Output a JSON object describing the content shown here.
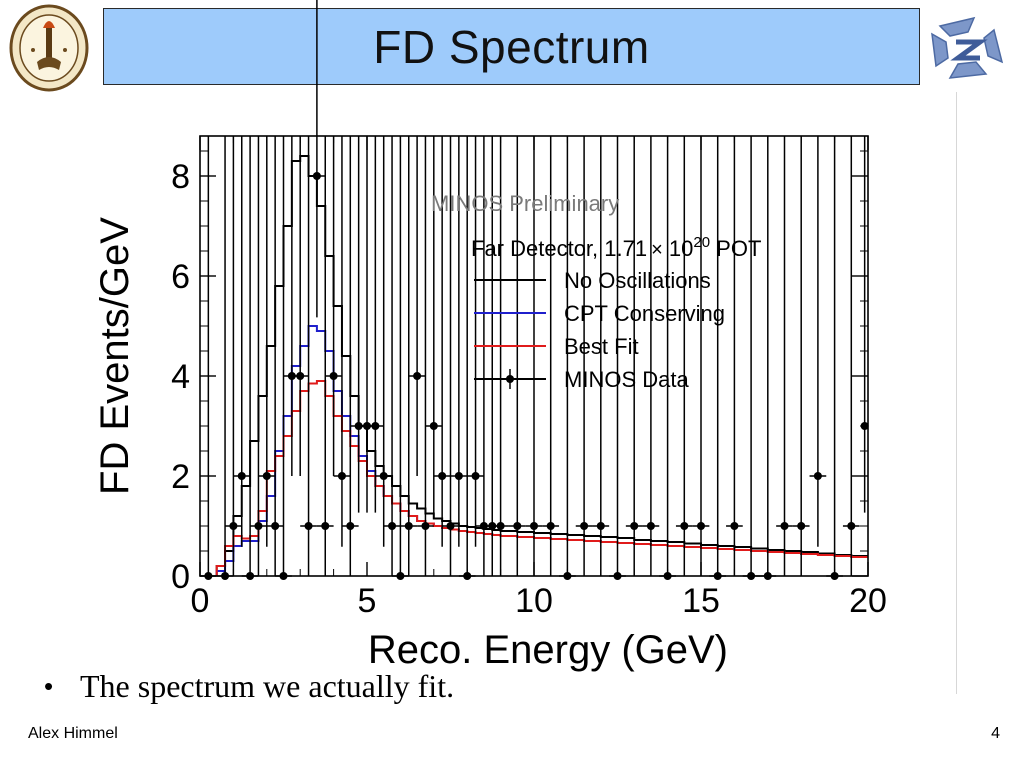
{
  "slide": {
    "title": "FD Spectrum",
    "bullet": "The spectrum we actually fit.",
    "bullet_marker": "•",
    "footer_author": "Alex Himmel",
    "page_number": "4",
    "logo_left_icon": "caltech-seal-icon",
    "logo_right_icon": "minos-logo-icon",
    "colors": {
      "title_bg": "#9ecbfb",
      "no_osc": "#000000",
      "cpt": "#1f1fcc",
      "best_fit": "#e01b1b",
      "data": "#000000",
      "preliminary": "#7a7a7a"
    }
  },
  "chart_data": {
    "type": "line",
    "xlabel": "Reco. Energy (GeV)",
    "ylabel": "FD Events/GeV",
    "xlim": [
      0,
      20
    ],
    "ylim": [
      0,
      8.8
    ],
    "xticks": [
      0,
      5,
      10,
      15,
      20
    ],
    "yticks": [
      0,
      2,
      4,
      6,
      8
    ],
    "annotation": "MINOS Preliminary",
    "legend_title_prefix": "Far Detector, 1.71",
    "legend_title_times": "×",
    "legend_title_base": " 10",
    "legend_title_exp": "20",
    "legend_title_suffix": " POT",
    "legend_position": "top-right",
    "grid": false,
    "histograms": [
      {
        "name": "No Oscillations",
        "color": "#000000",
        "edges": [
          0.5,
          0.75,
          1.0,
          1.25,
          1.5,
          1.75,
          2.0,
          2.25,
          2.5,
          2.75,
          3.0,
          3.25,
          3.5,
          3.75,
          4.0,
          4.25,
          4.5,
          4.75,
          5.0,
          5.25,
          5.5,
          5.75,
          6.0,
          6.25,
          6.5,
          6.75,
          7.0,
          7.25,
          7.5,
          7.75,
          8.0,
          8.25,
          8.5,
          8.75,
          9.0,
          9.5,
          10.0,
          10.5,
          11.0,
          11.5,
          12.0,
          12.5,
          13.0,
          13.5,
          14.0,
          14.5,
          15.0,
          15.5,
          16.0,
          16.5,
          17.0,
          17.5,
          18.0,
          18.5,
          19.0,
          19.5,
          20.0
        ],
        "values": [
          0.2,
          0.5,
          1.2,
          1.8,
          2.7,
          3.6,
          4.6,
          5.8,
          7.0,
          8.3,
          8.4,
          8.0,
          7.4,
          6.4,
          5.4,
          4.4,
          3.6,
          3.0,
          2.5,
          2.2,
          2.0,
          1.8,
          1.6,
          1.45,
          1.35,
          1.25,
          1.15,
          1.1,
          1.05,
          1.0,
          0.98,
          0.96,
          0.94,
          0.92,
          0.9,
          0.88,
          0.86,
          0.84,
          0.82,
          0.8,
          0.78,
          0.76,
          0.72,
          0.7,
          0.68,
          0.65,
          0.62,
          0.6,
          0.58,
          0.55,
          0.52,
          0.5,
          0.48,
          0.45,
          0.42,
          0.4
        ]
      },
      {
        "name": "CPT Conserving",
        "color": "#1f1fcc",
        "edges": [
          0.5,
          0.75,
          1.0,
          1.25,
          1.5,
          1.75,
          2.0,
          2.25,
          2.5,
          2.75,
          3.0,
          3.25,
          3.5,
          3.75,
          4.0,
          4.25,
          4.5,
          4.75,
          5.0,
          5.25,
          5.5,
          5.75,
          6.0,
          6.25,
          6.5,
          6.75,
          7.0,
          7.25,
          7.5,
          7.75,
          8.0,
          8.25,
          8.5,
          8.75,
          9.0,
          9.5,
          10.0,
          10.5,
          11.0,
          11.5,
          12.0,
          12.5,
          13.0,
          13.5,
          14.0,
          14.5,
          15.0,
          15.5,
          16.0,
          16.5,
          17.0,
          17.5,
          18.0,
          18.5,
          19.0,
          19.5,
          20.0
        ],
        "values": [
          0.1,
          0.3,
          0.6,
          0.7,
          0.7,
          1.1,
          1.6,
          2.5,
          3.2,
          4.2,
          4.6,
          5.0,
          4.9,
          4.5,
          3.7,
          3.2,
          2.8,
          2.4,
          2.1,
          1.8,
          1.6,
          1.45,
          1.3,
          1.2,
          1.1,
          1.05,
          1.0,
          0.96,
          0.93,
          0.9,
          0.88,
          0.86,
          0.84,
          0.82,
          0.8,
          0.78,
          0.76,
          0.74,
          0.72,
          0.7,
          0.68,
          0.66,
          0.64,
          0.62,
          0.6,
          0.58,
          0.56,
          0.54,
          0.52,
          0.5,
          0.48,
          0.46,
          0.44,
          0.42,
          0.4,
          0.38
        ]
      },
      {
        "name": "Best Fit",
        "color": "#e01b1b",
        "edges": [
          0.5,
          0.75,
          1.0,
          1.25,
          1.5,
          1.75,
          2.0,
          2.25,
          2.5,
          2.75,
          3.0,
          3.25,
          3.5,
          3.75,
          4.0,
          4.25,
          4.5,
          4.75,
          5.0,
          5.25,
          5.5,
          5.75,
          6.0,
          6.25,
          6.5,
          6.75,
          7.0,
          7.25,
          7.5,
          7.75,
          8.0,
          8.25,
          8.5,
          8.75,
          9.0,
          9.5,
          10.0,
          10.5,
          11.0,
          11.5,
          12.0,
          12.5,
          13.0,
          13.5,
          14.0,
          14.5,
          15.0,
          15.5,
          16.0,
          16.5,
          17.0,
          17.5,
          18.0,
          18.5,
          19.0,
          19.5,
          20.0
        ],
        "values": [
          0.2,
          0.6,
          0.8,
          0.75,
          0.8,
          1.3,
          2.1,
          2.4,
          2.8,
          3.3,
          3.7,
          3.85,
          3.9,
          3.6,
          3.2,
          2.9,
          2.6,
          2.3,
          2.0,
          1.8,
          1.6,
          1.45,
          1.3,
          1.2,
          1.1,
          1.05,
          1.0,
          0.96,
          0.93,
          0.9,
          0.88,
          0.86,
          0.84,
          0.82,
          0.8,
          0.78,
          0.76,
          0.74,
          0.72,
          0.7,
          0.68,
          0.66,
          0.64,
          0.62,
          0.6,
          0.58,
          0.56,
          0.54,
          0.52,
          0.5,
          0.48,
          0.46,
          0.44,
          0.42,
          0.4,
          0.38
        ]
      }
    ],
    "series": [
      {
        "name": "MINOS Data",
        "color": "#000000",
        "x": [
          0.25,
          0.75,
          1.0,
          1.25,
          1.5,
          1.75,
          2.0,
          2.25,
          2.5,
          2.75,
          3.0,
          3.25,
          3.5,
          3.75,
          4.0,
          4.25,
          4.5,
          4.75,
          5.0,
          5.25,
          5.5,
          5.75,
          6.0,
          6.25,
          6.5,
          6.75,
          7.0,
          7.25,
          7.5,
          7.75,
          8.0,
          8.25,
          8.5,
          8.75,
          9.0,
          9.5,
          10.0,
          10.5,
          11.0,
          11.5,
          12.0,
          12.5,
          13.0,
          13.5,
          14.0,
          14.5,
          15.0,
          15.5,
          16.0,
          16.5,
          17.0,
          17.5,
          18.0,
          18.5,
          19.0,
          19.5,
          19.9
        ],
        "y": [
          0,
          0,
          1,
          2,
          0,
          1,
          2,
          1,
          0,
          4,
          4,
          1,
          8,
          1,
          4,
          2,
          1,
          3,
          3,
          3,
          2,
          1,
          0,
          1,
          4,
          1,
          3,
          2,
          1,
          2,
          0,
          2,
          1,
          1,
          1,
          1,
          1,
          1,
          0,
          1,
          1,
          0,
          1,
          1,
          0,
          1,
          1,
          0,
          1,
          0,
          0,
          1,
          1,
          2,
          0,
          1,
          3
        ],
        "xerr": [
          0.25,
          0.25,
          0.25,
          0.25,
          0.25,
          0.25,
          0.25,
          0.25,
          0.25,
          0.25,
          0.25,
          0.25,
          0.25,
          0.25,
          0.25,
          0.25,
          0.25,
          0.25,
          0.25,
          0.25,
          0.25,
          0.25,
          0.25,
          0.25,
          0.25,
          0.25,
          0.25,
          0.25,
          0.25,
          0.25,
          0.25,
          0.25,
          0.25,
          0.25,
          0.25,
          0.25,
          0.25,
          0.25,
          0.25,
          0.25,
          0.25,
          0.25,
          0.25,
          0.25,
          0.25,
          0.25,
          0.25,
          0.25,
          0.25,
          0.25,
          0.25,
          0.25,
          0.25,
          0.25,
          0.25,
          0.25,
          0.1
        ]
      }
    ]
  }
}
